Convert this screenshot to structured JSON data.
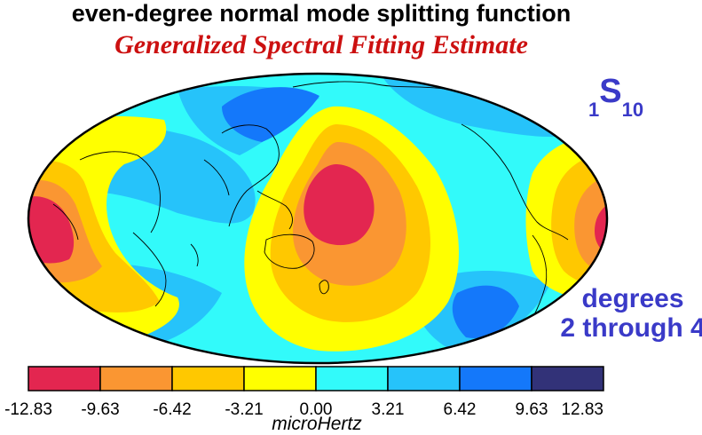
{
  "title": "even-degree normal mode splitting function",
  "subtitle": "Generalized Spectral Fitting Estimate",
  "mode": {
    "overtone": "1",
    "type": "S",
    "degree": "10"
  },
  "degrees_line1": "degrees",
  "degrees_line2": "2 through 4",
  "unit": "microHertz",
  "colorbar": {
    "ticks": [
      "-12.83",
      "-9.63",
      "-6.42",
      "-3.21",
      "0.00",
      "3.21",
      "6.42",
      "9.63",
      "12.83"
    ],
    "colors": [
      "#e32650",
      "#fa9632",
      "#ffc800",
      "#ffff00",
      "#32fafa",
      "#26c3fa",
      "#1478fa",
      "#323278"
    ]
  },
  "map_colors": {
    "red": "#e32650",
    "orange": "#fa9632",
    "amber": "#ffc800",
    "yellow": "#ffff00",
    "cyan": "#32fafa",
    "lightblue": "#26c3fa",
    "blue": "#1478fa"
  }
}
